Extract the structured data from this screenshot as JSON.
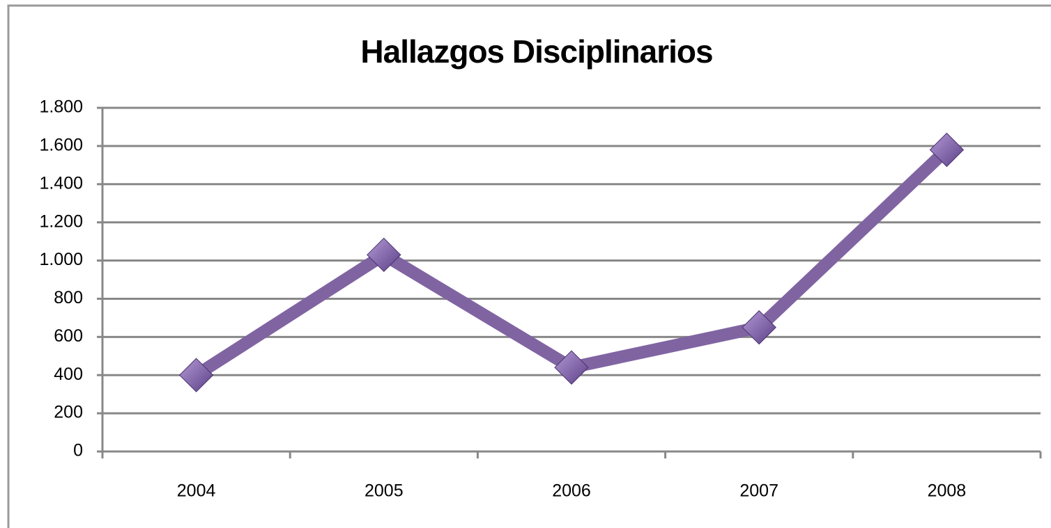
{
  "chart_data": {
    "type": "line",
    "title": "Hallazgos Disciplinarios",
    "categories": [
      "2004",
      "2005",
      "2006",
      "2007",
      "2008"
    ],
    "series": [
      {
        "color": "#8064a2",
        "values": [
          400,
          1030,
          440,
          650,
          1580
        ]
      }
    ],
    "ylim": [
      0,
      1800
    ],
    "yticks": [
      0,
      200,
      400,
      600,
      800,
      {
        "value": 1000,
        "label": "1.000"
      },
      {
        "value": 1200,
        "label": "1.200"
      },
      {
        "value": 1400,
        "label": "1.400"
      },
      {
        "value": 1600,
        "label": "1.600"
      },
      {
        "value": 1800,
        "label": "1.800"
      }
    ],
    "grid": true
  }
}
